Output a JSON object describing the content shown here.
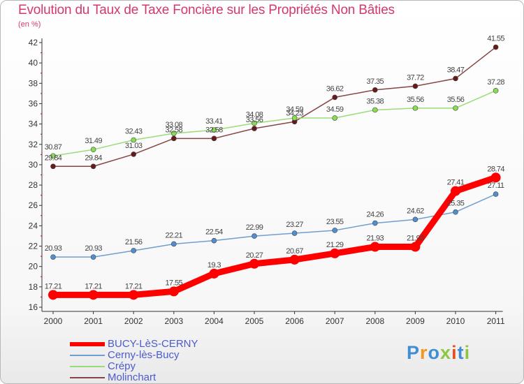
{
  "header": {
    "title": "Evolution du Taux de Taxe Foncière sur les Propriétés Non Bâties",
    "unit": "(en %)"
  },
  "logo": {
    "text": "Proxiti",
    "colors": [
      "#3f8fd2",
      "#f7941d",
      "#3f8fd2",
      "#8dc63f",
      "#e94e1b",
      "#3f8fd2",
      "#8dc63f"
    ]
  },
  "chart_data": {
    "type": "line",
    "x": [
      "2000",
      "2001",
      "2002",
      "2003",
      "2004",
      "2005",
      "2006",
      "2007",
      "2008",
      "2009",
      "2010",
      "2011"
    ],
    "ylim": [
      16,
      42
    ],
    "yticks": [
      16,
      18,
      20,
      22,
      24,
      26,
      28,
      30,
      32,
      34,
      36,
      38,
      40,
      42
    ],
    "grid": false,
    "legend_position": "bottom-left",
    "series": [
      {
        "name": "BUCY-LèS-CERNY",
        "color": "#ff0000",
        "marker": "#ff0000",
        "values": [
          17.21,
          17.21,
          17.21,
          17.55,
          19.3,
          20.27,
          20.67,
          21.29,
          21.93,
          21.93,
          27.41,
          28.74
        ],
        "labels": [
          "17.21",
          "17.21",
          "17.21",
          "17.55",
          "19.3",
          "20.27",
          "20.67",
          "21.29",
          "21.93",
          "21.93",
          "27.41",
          "28.74"
        ]
      },
      {
        "name": "Cerny-lès-Bucy",
        "color": "#6f9fcf",
        "marker": "#4f8fcf",
        "values": [
          20.93,
          20.93,
          21.56,
          22.21,
          22.54,
          22.99,
          23.27,
          23.55,
          24.26,
          24.62,
          25.35,
          27.11
        ],
        "labels": [
          "20.93",
          "20.93",
          "21.56",
          "22.21",
          "22.54",
          "22.99",
          "23.27",
          "23.55",
          "24.26",
          "24.62",
          "25.35",
          "27.11"
        ]
      },
      {
        "name": "Crépy",
        "color": "#99dd77",
        "marker": "#88dd55",
        "values": [
          30.87,
          31.49,
          32.43,
          33.08,
          33.41,
          34.08,
          34.59,
          34.59,
          35.38,
          35.56,
          35.56,
          37.28
        ],
        "labels": [
          "30.87",
          "31.49",
          "32.43",
          "33.08",
          "33.41",
          "34.08",
          "34.59",
          "34.59",
          "35.38",
          "35.56",
          "35.56",
          "37.28"
        ]
      },
      {
        "name": "Molinchart",
        "color": "#884444",
        "marker": "#661a1a",
        "values": [
          29.84,
          29.84,
          31.03,
          32.58,
          32.58,
          33.56,
          34.23,
          36.62,
          37.35,
          37.72,
          38.47,
          41.55
        ],
        "labels": [
          "29.84",
          "29.84",
          "31.03",
          "32.58",
          "32.58",
          "33.56",
          "34.23",
          "36.62",
          "37.35",
          "37.72",
          "38.47",
          "41.55"
        ]
      }
    ]
  }
}
